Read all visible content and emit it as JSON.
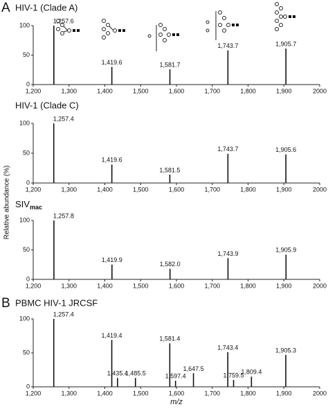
{
  "y_label": "Relative abundance (%)",
  "x_label": "m/z",
  "chart_data": [
    {
      "type": "spectrum",
      "panel": "A",
      "title": "HIV-1 (Clade A)",
      "x": [
        {
          "value": 1257.6,
          "label": "1,257.6"
        },
        {
          "value": 1419.6,
          "label": "1,419.6"
        },
        {
          "value": 1581.7,
          "label": "1,581.7"
        },
        {
          "value": 1743.7,
          "label": "1,743.7"
        },
        {
          "value": 1905.7,
          "label": "1,905.7"
        }
      ],
      "values": [
        100,
        30,
        26,
        58,
        61
      ],
      "xlim": [
        1200,
        2000
      ],
      "ylim": [
        0,
        100
      ],
      "xticks": [
        {
          "value": 1200,
          "label": "1,200"
        },
        {
          "value": 1300,
          "label": "1,300"
        },
        {
          "value": 1400,
          "label": "1,400"
        },
        {
          "value": 1500,
          "label": "1,500"
        },
        {
          "value": 1600,
          "label": "1,600"
        },
        {
          "value": 1700,
          "label": "1,700"
        },
        {
          "value": 1800,
          "label": "1,800"
        },
        {
          "value": 1900,
          "label": "1,900"
        },
        2000
      ],
      "yticks": [
        0,
        50,
        100
      ],
      "color": "#111111"
    },
    {
      "type": "spectrum",
      "title": "HIV-1 (Clade C)",
      "x": [
        {
          "value": 1257.4,
          "label": "1,257.4"
        },
        {
          "value": 1419.6,
          "label": "1,419.6"
        },
        {
          "value": 1581.5,
          "label": "1,581.5"
        },
        {
          "value": 1743.7,
          "label": "1,743.7"
        },
        {
          "value": 1905.6,
          "label": "1,905.6"
        }
      ],
      "values": [
        100,
        31,
        14,
        49,
        48
      ],
      "xlim": [
        1200,
        2000
      ],
      "ylim": [
        0,
        100
      ],
      "xticks": [
        {
          "value": 1200,
          "label": "1,200"
        },
        {
          "value": 1300,
          "label": "1,300"
        },
        {
          "value": 1400,
          "label": "1,400"
        },
        {
          "value": 1500,
          "label": "1,500"
        },
        {
          "value": 1600,
          "label": "1,600"
        },
        {
          "value": 1700,
          "label": "1,700"
        },
        {
          "value": 1800,
          "label": "1,800"
        },
        {
          "value": 1900,
          "label": "1,900"
        },
        2000
      ],
      "yticks": [
        0,
        50,
        100
      ],
      "color": "#111111"
    },
    {
      "type": "spectrum",
      "title": "SIV",
      "title_subscript": "mac",
      "x": [
        {
          "value": 1257.8,
          "label": "1,257.8"
        },
        {
          "value": 1419.9,
          "label": "1,419.9"
        },
        {
          "value": 1582.0,
          "label": "1,582.0"
        },
        {
          "value": 1743.9,
          "label": "1,743.9"
        },
        {
          "value": 1905.9,
          "label": "1,905.9"
        }
      ],
      "values": [
        100,
        25,
        18,
        36,
        42
      ],
      "xlim": [
        1200,
        2000
      ],
      "ylim": [
        0,
        100
      ],
      "xticks": [
        {
          "value": 1200,
          "label": "1,200"
        },
        {
          "value": 1300,
          "label": "1,300"
        },
        {
          "value": 1400,
          "label": "1,400"
        },
        {
          "value": 1500,
          "label": "1,500"
        },
        {
          "value": 1600,
          "label": "1,600"
        },
        {
          "value": 1700,
          "label": "1,700"
        },
        {
          "value": 1800,
          "label": "1,800"
        },
        {
          "value": 1900,
          "label": "1,900"
        },
        2000
      ],
      "yticks": [
        0,
        50,
        100
      ],
      "color": "#111111"
    },
    {
      "type": "spectrum",
      "panel": "B",
      "title": "PBMC HIV-1 JRCSF",
      "x": [
        {
          "value": 1257.4,
          "label": "1,257.4"
        },
        {
          "value": 1419.4,
          "label": "1,419.4"
        },
        {
          "value": 1435.4,
          "label": "1,435.4"
        },
        {
          "value": 1485.5,
          "label": "1,485.5"
        },
        {
          "value": 1581.4,
          "label": "1,581.4"
        },
        {
          "value": 1597.4,
          "label": "1,597.4"
        },
        {
          "value": 1647.5,
          "label": "1,647.5"
        },
        {
          "value": 1743.4,
          "label": "1,743.4"
        },
        {
          "value": 1759.5,
          "label": "1,759.5"
        },
        {
          "value": 1809.4,
          "label": "1,809.4"
        },
        {
          "value": 1905.3,
          "label": "1,905.3"
        }
      ],
      "values": [
        100,
        69,
        13,
        13,
        64,
        9,
        20,
        51,
        10,
        15,
        47
      ],
      "xlim": [
        1200,
        2000
      ],
      "ylim": [
        0,
        100
      ],
      "xticks": [
        {
          "value": 1200,
          "label": "1,200"
        },
        {
          "value": 1300,
          "label": "1,300"
        },
        {
          "value": 1400,
          "label": "1,400"
        },
        {
          "value": 1500,
          "label": "1,500"
        },
        {
          "value": 1600,
          "label": "1,600"
        },
        {
          "value": 1700,
          "label": "1,700"
        },
        {
          "value": 1800,
          "label": "1,800"
        },
        {
          "value": 1900,
          "label": "1,900"
        },
        2000
      ],
      "yticks": [
        0,
        50,
        100
      ],
      "color": "#111111"
    }
  ]
}
